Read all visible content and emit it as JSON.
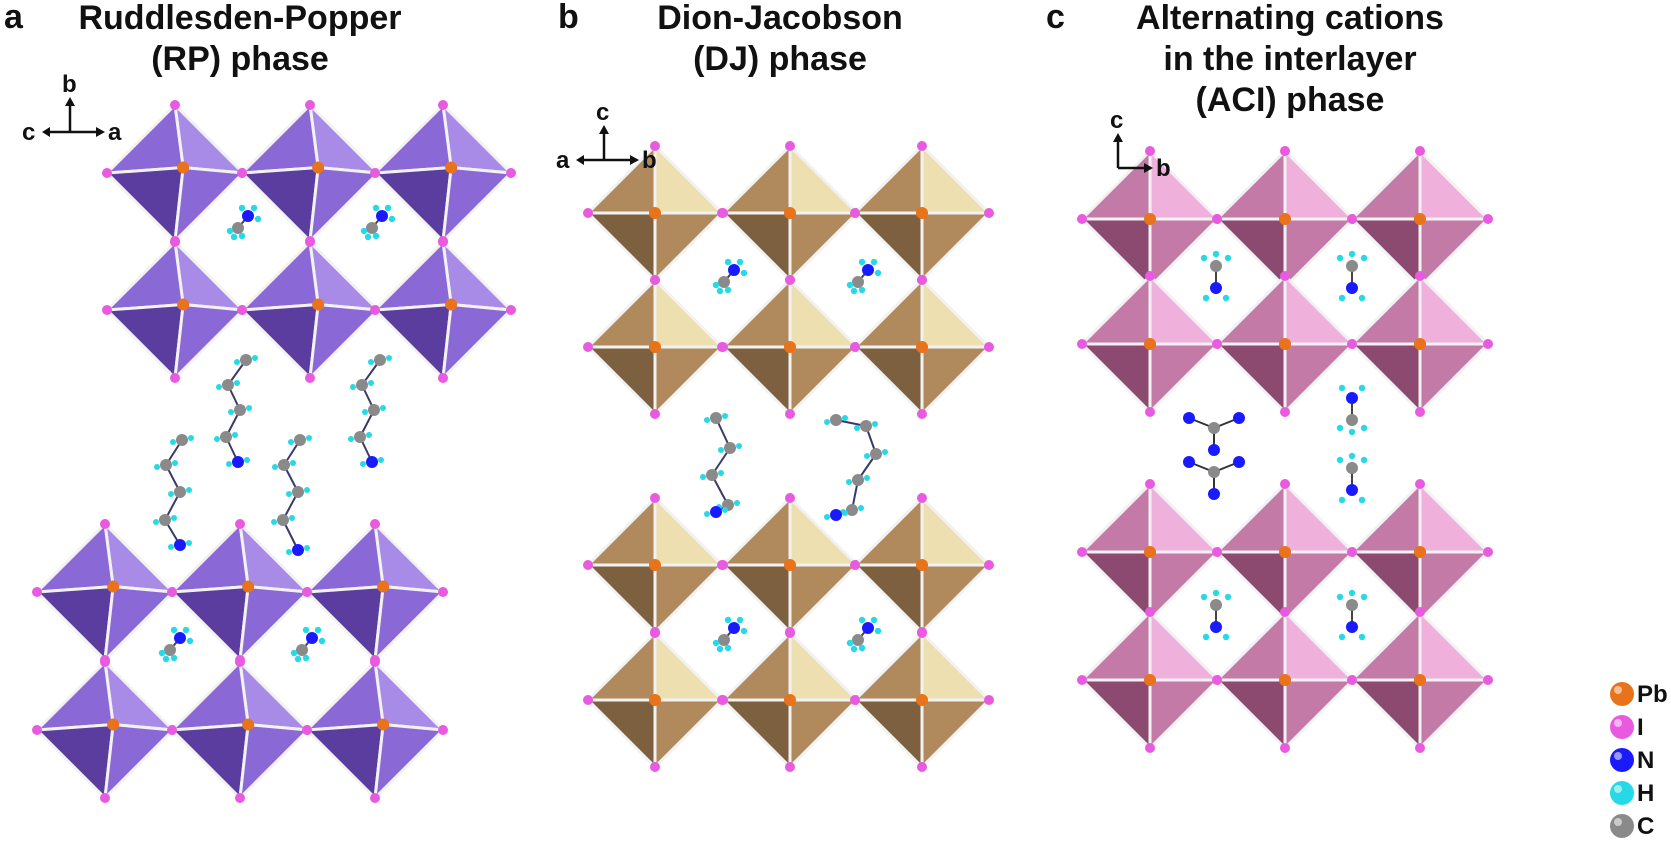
{
  "panels": [
    {
      "letter": "a",
      "title_lines": [
        "Ruddlesden-Popper",
        "(RP) phase"
      ],
      "axes": {
        "up": "b",
        "left": "c",
        "right": "a"
      },
      "color": {
        "light": "#a88be6",
        "mid": "#8a68d6",
        "dark": "#5a3d9e"
      }
    },
    {
      "letter": "b",
      "title_lines": [
        "Dion-Jacobson",
        "(DJ) phase"
      ],
      "axes": {
        "up": "c",
        "left": "a",
        "right": "b"
      },
      "color": {
        "light": "#eedfb0",
        "mid": "#b08a5c",
        "dark": "#7d6040"
      }
    },
    {
      "letter": "c",
      "title_lines": [
        "Alternating cations",
        "in the interlayer",
        "(ACI) phase"
      ],
      "axes": {
        "up": "c",
        "left": "",
        "right": "b"
      },
      "color": {
        "light": "#f0b0dc",
        "mid": "#c47aa6",
        "dark": "#8c4a70"
      }
    }
  ],
  "legend": [
    {
      "label": "Pb",
      "color": "#e8731b"
    },
    {
      "label": "I",
      "color": "#e85be0"
    },
    {
      "label": "N",
      "color": "#1a1aff"
    },
    {
      "label": "H",
      "color": "#27d9e6"
    },
    {
      "label": "C",
      "color": "#8a8a8a"
    }
  ]
}
